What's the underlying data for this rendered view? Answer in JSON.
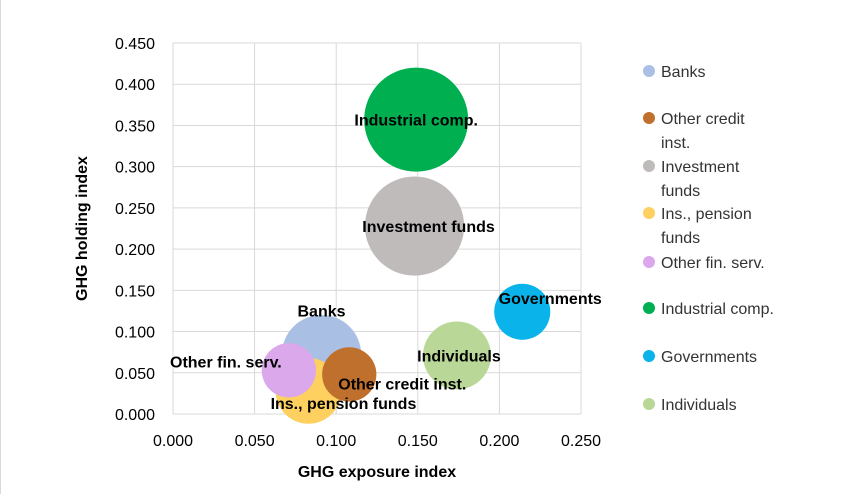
{
  "chart_data": {
    "type": "bubble",
    "xlabel": "GHG exposure index",
    "ylabel": "GHG holding index",
    "xlim": [
      0,
      0.25
    ],
    "ylim": [
      0,
      0.45
    ],
    "x_ticks": [
      "0.000",
      "0.050",
      "0.100",
      "0.150",
      "0.200",
      "0.250"
    ],
    "y_ticks": [
      "0.000",
      "0.050",
      "0.100",
      "0.150",
      "0.200",
      "0.250",
      "0.300",
      "0.350",
      "0.400",
      "0.450"
    ],
    "grid": true,
    "legend_position": "right",
    "series": [
      {
        "name": "Banks",
        "legend": "Banks",
        "label": "Banks",
        "x": 0.091,
        "y": 0.072,
        "size": 0.64,
        "color": "#a9bfe4"
      },
      {
        "name": "Other credit inst.",
        "legend": "Other credit inst.",
        "label": "Other credit inst.",
        "x": 0.108,
        "y": 0.048,
        "size": 0.3,
        "color": "#c0702d"
      },
      {
        "name": "Investment funds",
        "legend": "Investment funds",
        "label": "Investment funds",
        "x": 0.148,
        "y": 0.228,
        "size": 1.0,
        "color": "#bfbbbb"
      },
      {
        "name": "Ins., pension funds",
        "legend": "Ins., pension funds",
        "label": "Ins., pension funds",
        "x": 0.083,
        "y": 0.028,
        "size": 0.44,
        "color": "#fdd060"
      },
      {
        "name": "Other fin. serv.",
        "legend": "Other fin. serv.",
        "label": "Other fin. serv.",
        "x": 0.071,
        "y": 0.053,
        "size": 0.3,
        "color": "#dba8ec"
      },
      {
        "name": "Industrial comp.",
        "legend": "Industrial comp.",
        "label": "Industrial comp.",
        "x": 0.149,
        "y": 0.357,
        "size": 1.1,
        "color": "#00b050"
      },
      {
        "name": "Governments",
        "legend": "Governments",
        "label": "Governments",
        "x": 0.214,
        "y": 0.124,
        "size": 0.32,
        "color": "#0ab4ea"
      },
      {
        "name": "Individuals",
        "legend": "Individuals",
        "label": "Individuals",
        "x": 0.174,
        "y": 0.071,
        "size": 0.47,
        "color": "#b9d898"
      }
    ]
  },
  "colors": {
    "grid": "#d9d9d9",
    "text": "#000000",
    "legend_text": "#333333"
  }
}
